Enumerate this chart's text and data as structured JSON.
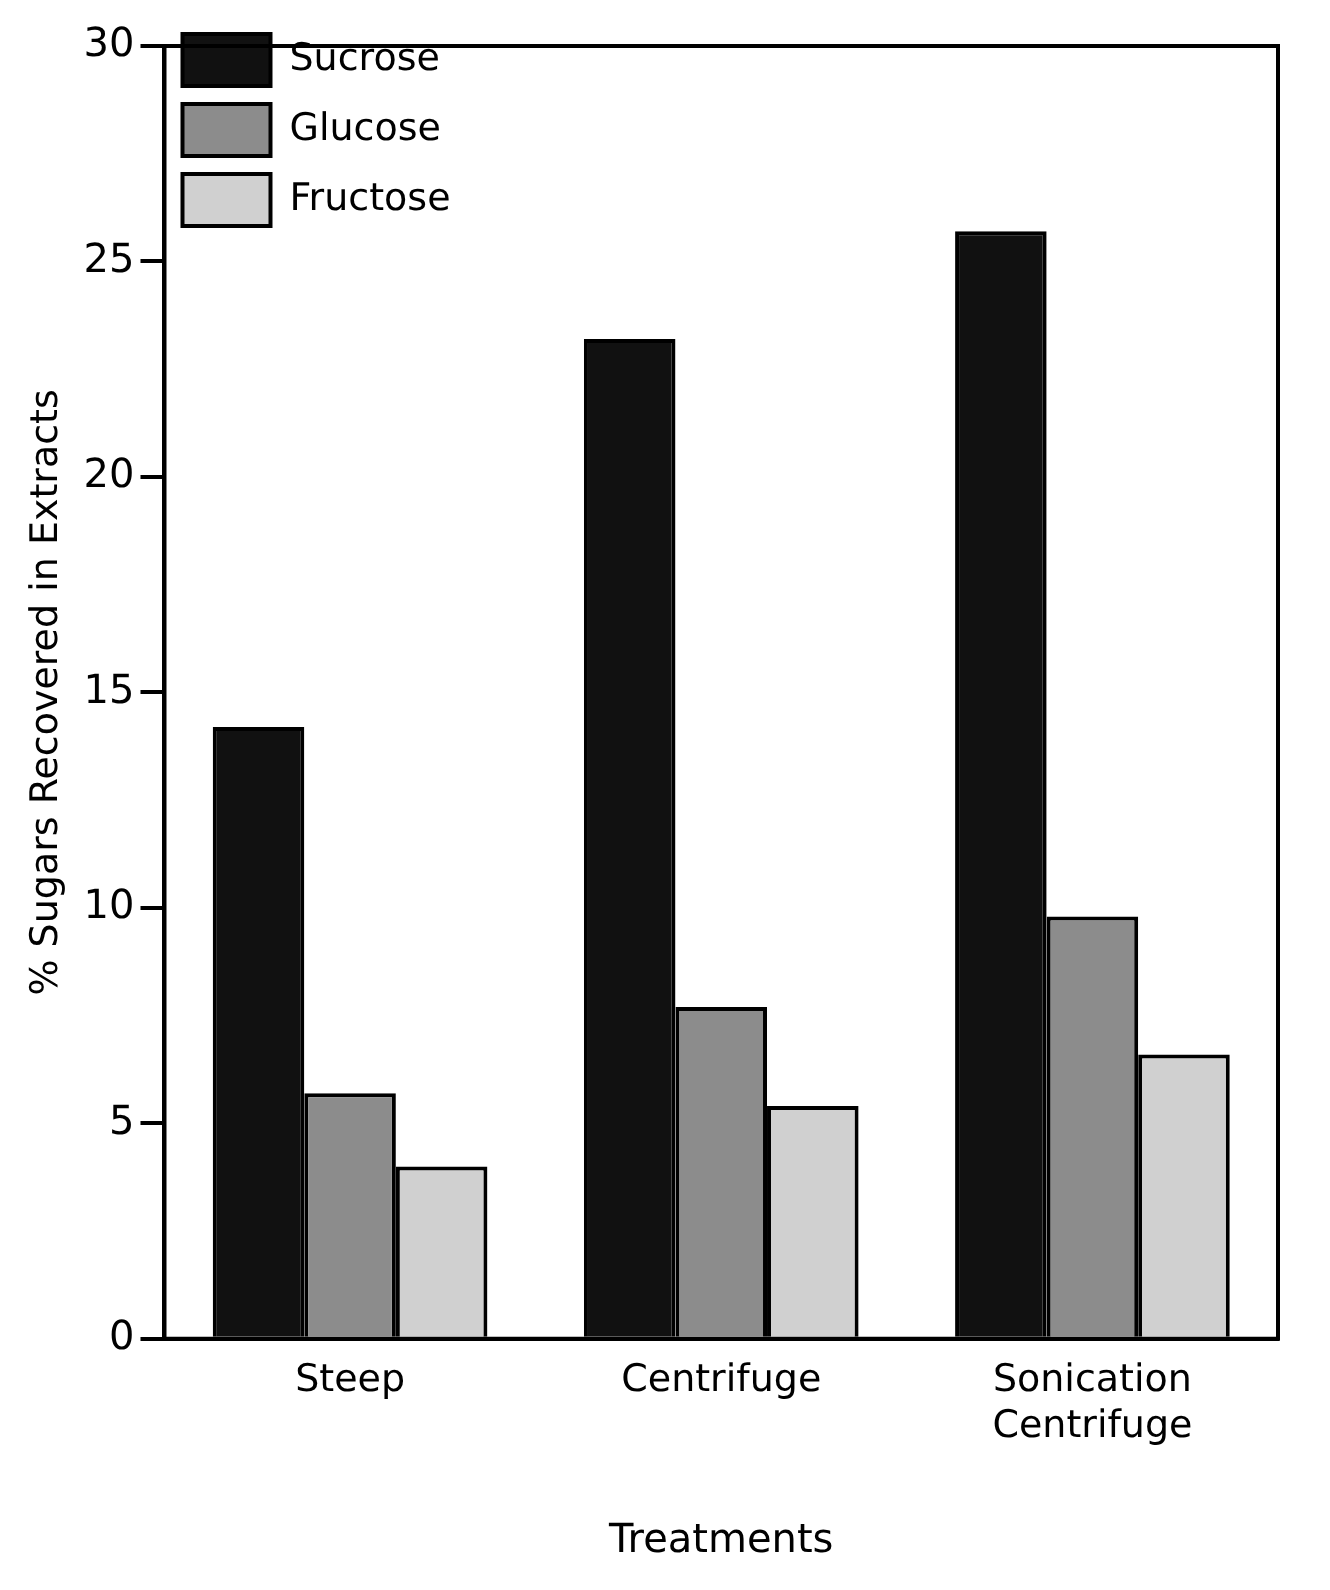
{
  "chart_data": {
    "type": "bar",
    "xlabel": "Treatments",
    "ylabel": "% Sugars Recovered in Extracts",
    "categories": [
      "Steep",
      "Centrifuge",
      "Sonication Centrifuge"
    ],
    "series": [
      {
        "name": "Sucrose",
        "color": "#111111",
        "values": [
          14.2,
          23.2,
          25.7
        ]
      },
      {
        "name": "Glucose",
        "color": "#8c8c8c",
        "values": [
          5.7,
          7.7,
          9.8
        ]
      },
      {
        "name": "Fructose",
        "color": "#d0d0d0",
        "values": [
          4.0,
          5.4,
          6.6
        ]
      }
    ],
    "ylim": [
      0,
      30
    ],
    "yticks": [
      0,
      5,
      10,
      15,
      20,
      25,
      30
    ],
    "grid": false,
    "legend": "top left"
  }
}
